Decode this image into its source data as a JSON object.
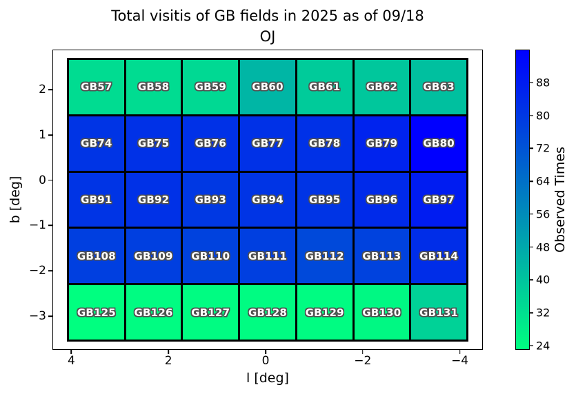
{
  "title": {
    "line1": "Total visitis of GB fields in 2025 as of 09/18",
    "line2": "OJ"
  },
  "axes": {
    "xlabel": "l [deg]",
    "ylabel": "b [deg]",
    "x_tick_labels": [
      "4",
      "2",
      "0",
      "−2",
      "−4"
    ],
    "x_tick_values": [
      4,
      2,
      0,
      -2,
      -4
    ],
    "y_tick_labels": [
      "2",
      "1",
      "0",
      "−1",
      "−2",
      "−3"
    ],
    "y_tick_values": [
      2,
      1,
      0,
      -1,
      -2,
      -3
    ]
  },
  "colorbar": {
    "label": "Observed Times",
    "tick_labels": [
      "24",
      "32",
      "40",
      "48",
      "56",
      "64",
      "72",
      "80",
      "88"
    ],
    "tick_values": [
      24,
      32,
      40,
      48,
      56,
      64,
      72,
      80,
      88
    ],
    "low_color": "#00FF80",
    "high_color": "#0000FF"
  },
  "chart_data": {
    "type": "heatmap",
    "title": "Total visitis of GB fields in 2025 as of 09/18\nOJ",
    "xlabel": "l [deg]",
    "ylabel": "b [deg]",
    "colorbar_label": "Observed Times",
    "colormap": "winter_r",
    "vmin": 23,
    "vmax": 96,
    "x_axis_inverted": true,
    "x_ticks": [
      4,
      2,
      0,
      -2,
      -4
    ],
    "y_ticks": [
      2,
      1,
      0,
      -1,
      -2,
      -3
    ],
    "colorbar_ticks": [
      24,
      32,
      40,
      48,
      56,
      64,
      72,
      80,
      88
    ],
    "columns_l_centers": [
      3.5,
      2.33,
      1.17,
      0,
      -1.17,
      -2.33,
      -3.5
    ],
    "rows_b_centers": [
      2.07,
      0.82,
      -0.43,
      -1.68,
      -2.93
    ],
    "rows": [
      {
        "fields": [
          "GB57",
          "GB58",
          "GB59",
          "GB60",
          "GB61",
          "GB62",
          "GB63"
        ],
        "values": [
          33,
          33,
          34,
          44,
          38,
          39,
          41
        ]
      },
      {
        "fields": [
          "GB74",
          "GB75",
          "GB76",
          "GB77",
          "GB78",
          "GB79",
          "GB80"
        ],
        "values": [
          81,
          82,
          82,
          82,
          82,
          86,
          96
        ]
      },
      {
        "fields": [
          "GB91",
          "GB92",
          "GB93",
          "GB94",
          "GB95",
          "GB96",
          "GB97"
        ],
        "values": [
          81,
          82,
          80,
          81,
          81,
          84,
          88
        ]
      },
      {
        "fields": [
          "GB108",
          "GB109",
          "GB110",
          "GB111",
          "GB112",
          "GB113",
          "GB114"
        ],
        "values": [
          78,
          78,
          77,
          78,
          75,
          77,
          83
        ]
      },
      {
        "fields": [
          "GB125",
          "GB126",
          "GB127",
          "GB128",
          "GB129",
          "GB130",
          "GB131"
        ],
        "values": [
          23,
          24,
          24,
          24,
          24,
          25,
          36
        ]
      }
    ]
  }
}
